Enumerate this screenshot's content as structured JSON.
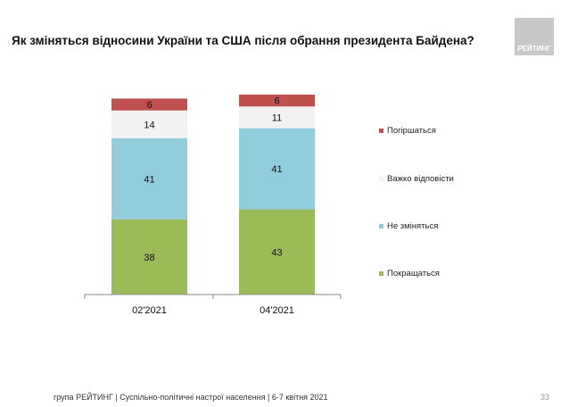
{
  "title": "Як зміняться відносини України та США після обрання президента Байдена?",
  "logo_text": "РЕЙТИНГ",
  "footer": "група РЕЙТИНГ | Суспільно-політичні настрої населення | 6-7 квітня 2021",
  "page_number": "33",
  "chart_data": {
    "type": "bar",
    "stacked": true,
    "title": "Як зміняться відносини України та США після обрання президента Байдена?",
    "categories": [
      "02'2021",
      "04'2021"
    ],
    "ylim": [
      0,
      101
    ],
    "legend_position": "right",
    "series": [
      {
        "name": "Покращаться",
        "color": "#9bbb59",
        "values": [
          38,
          43
        ]
      },
      {
        "name": "Не зміняться",
        "color": "#92cddc",
        "values": [
          41,
          41
        ]
      },
      {
        "name": "Важко відповісти",
        "color": "#f2f2f2",
        "values": [
          14,
          11
        ]
      },
      {
        "name": "Погіршаться",
        "color": "#c0504d",
        "values": [
          6,
          6
        ]
      }
    ]
  }
}
